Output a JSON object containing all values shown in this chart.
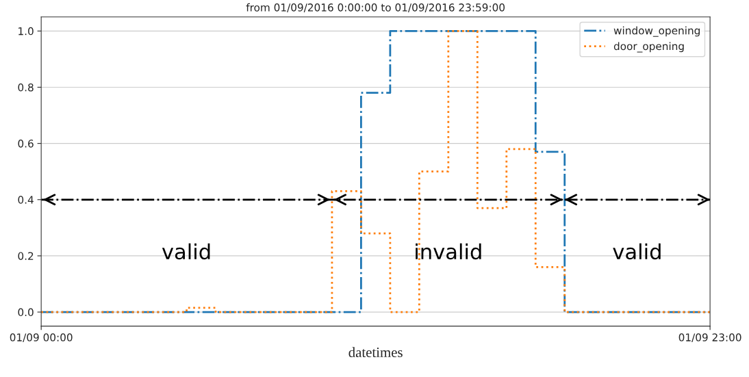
{
  "chart_data": {
    "type": "step",
    "title": "from 01/09/2016 0:00:00 to 01/09/2016 23:59:00",
    "xlabel": "datetimes",
    "x": [
      "2016-09-01T00:00",
      "2016-09-01T01:00",
      "2016-09-01T02:00",
      "2016-09-01T03:00",
      "2016-09-01T04:00",
      "2016-09-01T05:00",
      "2016-09-01T06:00",
      "2016-09-01T07:00",
      "2016-09-01T08:00",
      "2016-09-01T09:00",
      "2016-09-01T10:00",
      "2016-09-01T11:00",
      "2016-09-01T12:00",
      "2016-09-01T13:00",
      "2016-09-01T14:00",
      "2016-09-01T15:00",
      "2016-09-01T16:00",
      "2016-09-01T17:00",
      "2016-09-01T18:00",
      "2016-09-01T19:00",
      "2016-09-01T20:00",
      "2016-09-01T21:00",
      "2016-09-01T22:00",
      "2016-09-01T23:00"
    ],
    "series": [
      {
        "name": "window_opening",
        "color": "#1f77b4",
        "line_style": "dashdot",
        "values": [
          0,
          0,
          0,
          0,
          0,
          0,
          0,
          0,
          0,
          0,
          0,
          0.78,
          1.0,
          1.0,
          1.0,
          1.0,
          1.0,
          0.57,
          0,
          0,
          0,
          0,
          0,
          0
        ]
      },
      {
        "name": "door_opening",
        "color": "#ff7f0e",
        "line_style": "dotted",
        "values": [
          0,
          0,
          0,
          0,
          0,
          0.015,
          0,
          0,
          0,
          0,
          0.43,
          0.28,
          0,
          0.5,
          1.0,
          0.37,
          0.58,
          0.16,
          0,
          0,
          0,
          0,
          0,
          0
        ]
      },
      {
        "type": "line",
        "color": "#000000",
        "line_style": "dashdot",
        "x": [
          "2016-09-01T00:00",
          "2016-09-01T10:00",
          "2016-09-01T18:00",
          "2016-09-01T23:00"
        ],
        "values": [
          0.4,
          0.4,
          0.4,
          0.4
        ]
      }
    ],
    "annotations": [
      "valid",
      "invalid",
      "valid"
    ],
    "xlim": [
      "2016-09-01T00:00",
      "2016-09-01T23:00"
    ],
    "xticks": [
      {
        "value": "2016-09-01T00:00",
        "label": "01/09 00:00"
      },
      {
        "value": "2016-09-01T23:00",
        "label": "01/09 23:00"
      }
    ],
    "ylim": [
      -0.05,
      1.05
    ],
    "yticks": [
      {
        "value": 0,
        "label": "0.0"
      },
      0.2,
      0.4,
      0.6,
      0.8,
      {
        "value": 1,
        "label": "1.0"
      }
    ],
    "grid": "y",
    "legend": "top right",
    "marker": "none"
  }
}
